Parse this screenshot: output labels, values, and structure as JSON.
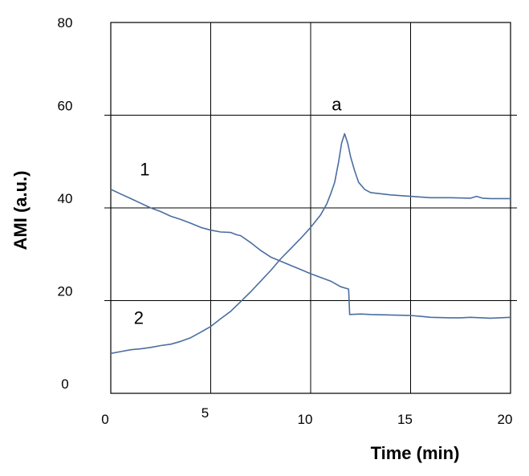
{
  "chart_data": {
    "type": "line",
    "title": "",
    "xlabel": "Time (min)",
    "ylabel": "AMI (a.u.)",
    "xlim": [
      0,
      20
    ],
    "ylim": [
      0,
      80
    ],
    "x_ticks": [
      0,
      5,
      10,
      15,
      20
    ],
    "y_ticks": [
      0,
      20,
      40,
      60,
      80
    ],
    "grid": true,
    "line_color": "#4a6ea0",
    "annotations": [
      {
        "text": "a",
        "x": 11.3,
        "y": 61
      },
      {
        "text": "1",
        "x": 1.7,
        "y": 47
      },
      {
        "text": "2",
        "x": 1.4,
        "y": 15
      }
    ],
    "series": [
      {
        "points": [
          [
            0,
            44
          ],
          [
            0.5,
            43
          ],
          [
            1,
            42
          ],
          [
            1.5,
            41
          ],
          [
            2,
            40
          ],
          [
            2.5,
            39.2
          ],
          [
            3,
            38.2
          ],
          [
            3.5,
            37.5
          ],
          [
            4,
            36.7
          ],
          [
            4.5,
            35.8
          ],
          [
            5,
            35.2
          ],
          [
            5.5,
            34.8
          ],
          [
            6,
            34.7
          ],
          [
            6.3,
            34.2
          ],
          [
            6.5,
            34
          ],
          [
            7,
            32.5
          ],
          [
            7.5,
            30.8
          ],
          [
            8,
            29.4
          ],
          [
            8.5,
            28.5
          ],
          [
            9,
            27.6
          ],
          [
            9.5,
            26.7
          ],
          [
            10,
            25.8
          ],
          [
            10.5,
            25
          ],
          [
            11,
            24.2
          ],
          [
            11.5,
            23
          ],
          [
            11.9,
            22.5
          ],
          [
            11.95,
            17
          ],
          [
            12.5,
            17.1
          ],
          [
            13,
            17
          ],
          [
            14,
            16.9
          ],
          [
            15,
            16.8
          ],
          [
            15.5,
            16.6
          ],
          [
            16,
            16.4
          ],
          [
            17,
            16.3
          ],
          [
            17.5,
            16.3
          ],
          [
            18,
            16.4
          ],
          [
            19,
            16.2
          ],
          [
            20,
            16.4
          ]
        ]
      },
      {
        "points": [
          [
            0,
            8.6
          ],
          [
            0.5,
            9
          ],
          [
            1,
            9.4
          ],
          [
            1.5,
            9.6
          ],
          [
            2,
            9.9
          ],
          [
            2.5,
            10.3
          ],
          [
            3,
            10.6
          ],
          [
            3.5,
            11.2
          ],
          [
            4,
            12
          ],
          [
            4.5,
            13.2
          ],
          [
            5,
            14.4
          ],
          [
            5.5,
            16.1
          ],
          [
            6,
            17.7
          ],
          [
            6.5,
            19.8
          ],
          [
            7,
            21.9
          ],
          [
            7.5,
            24.2
          ],
          [
            8,
            26.5
          ],
          [
            8.5,
            29
          ],
          [
            9,
            31.2
          ],
          [
            9.5,
            33.4
          ],
          [
            10,
            35.8
          ],
          [
            10.5,
            38.5
          ],
          [
            10.8,
            40.8
          ],
          [
            11,
            43
          ],
          [
            11.2,
            45.5
          ],
          [
            11.4,
            50
          ],
          [
            11.55,
            54
          ],
          [
            11.7,
            56
          ],
          [
            11.85,
            54
          ],
          [
            12,
            51
          ],
          [
            12.2,
            48
          ],
          [
            12.4,
            45.5
          ],
          [
            12.7,
            44
          ],
          [
            13,
            43.3
          ],
          [
            14,
            42.8
          ],
          [
            15,
            42.5
          ],
          [
            16,
            42.2
          ],
          [
            17,
            42.2
          ],
          [
            18,
            42.1
          ],
          [
            18.3,
            42.5
          ],
          [
            18.6,
            42.1
          ],
          [
            19,
            42
          ],
          [
            20,
            42
          ]
        ]
      }
    ]
  }
}
